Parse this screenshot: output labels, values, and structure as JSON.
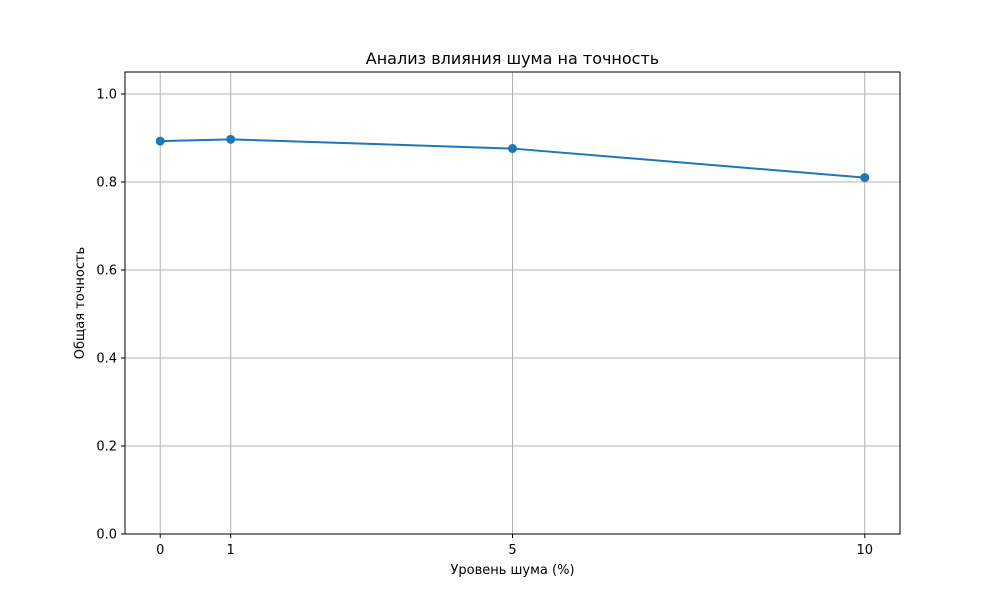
{
  "chart_data": {
    "type": "line",
    "title": "Анализ влияния шума на точность",
    "xlabel": "Уровень шума (%)",
    "ylabel": "Общая точность",
    "x": [
      0,
      1,
      5,
      10
    ],
    "series": [
      {
        "values": [
          0.893,
          0.897,
          0.876,
          0.81
        ]
      }
    ],
    "xlim": [
      -0.5,
      10.5
    ],
    "ylim": [
      0,
      1.05
    ],
    "xticks": [
      0,
      1,
      5,
      10
    ],
    "xtick_labels": [
      "0",
      "1",
      "5",
      "10"
    ],
    "yticks": [
      0.0,
      0.2,
      0.4,
      0.6,
      0.8,
      1.0
    ],
    "ytick_labels": [
      "0.0",
      "0.2",
      "0.4",
      "0.6",
      "0.8",
      "1.0"
    ],
    "grid": true,
    "legend": "none",
    "colors": {
      "line": "#1f77b4",
      "grid": "#b0b0b0",
      "axis": "#000000"
    }
  }
}
